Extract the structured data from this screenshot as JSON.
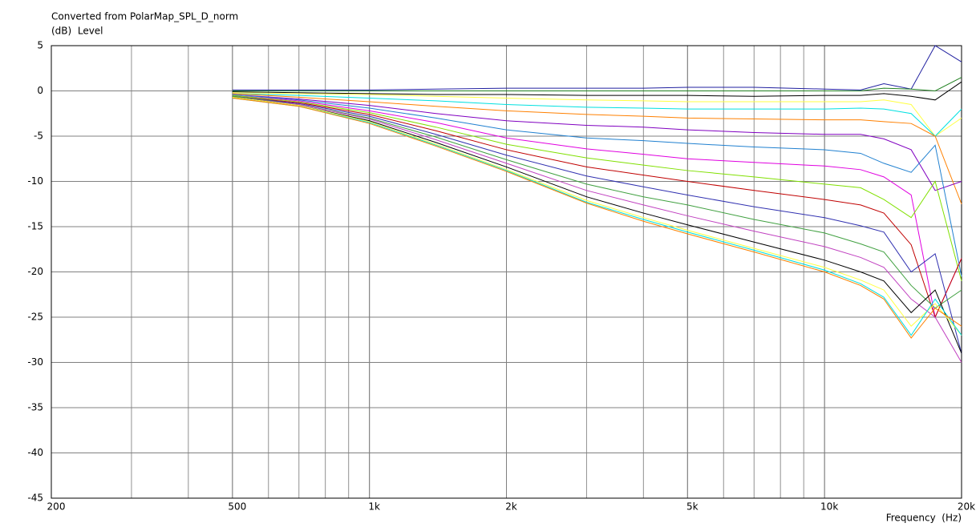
{
  "chart_data": {
    "type": "line",
    "title": "Converted from PolarMap_SPL_D_norm",
    "y_label": "(dB)  Level",
    "x_label": "Frequency  (Hz)",
    "xscale": "log",
    "grid": true,
    "minor_grid": true,
    "xlim": [
      200,
      20000
    ],
    "ylim": [
      -45,
      5
    ],
    "xticks": [
      200,
      500,
      {
        "value": 1000,
        "label": "1k"
      },
      {
        "value": 2000,
        "label": "2k"
      },
      {
        "value": 5000,
        "label": "5k"
      },
      {
        "value": 10000,
        "label": "10k"
      },
      {
        "value": 20000,
        "label": "20k"
      }
    ],
    "yticks": [
      5,
      0,
      -5,
      -10,
      -15,
      -20,
      -25,
      -30,
      -35,
      -40,
      -45
    ],
    "x": [
      500,
      700,
      1000,
      1400,
      2000,
      3000,
      4000,
      5000,
      7000,
      10000,
      12000,
      13500,
      15500,
      17500,
      20000
    ],
    "series": [
      {
        "color": "#2020a0",
        "values": [
          0.1,
          0.1,
          0.1,
          0.2,
          0.3,
          0.3,
          0.3,
          0.4,
          0.4,
          0.2,
          0.1,
          0.8,
          0.2,
          5,
          3.2
        ]
      },
      {
        "color": "#208020",
        "values": [
          0,
          0,
          0,
          0,
          0,
          0,
          0,
          0,
          0,
          0,
          0,
          0.3,
          0.2,
          0,
          1.5
        ]
      },
      {
        "color": "#000000",
        "values": [
          -0.1,
          -0.2,
          -0.3,
          -0.4,
          -0.4,
          -0.5,
          -0.5,
          -0.5,
          -0.6,
          -0.5,
          -0.5,
          -0.3,
          -0.6,
          -1,
          1
        ]
      },
      {
        "color": "#ffff40",
        "values": [
          -0.2,
          -0.3,
          -0.4,
          -0.6,
          -0.8,
          -1,
          -1.1,
          -1.2,
          -1.2,
          -1.2,
          -1.2,
          -1,
          -1.5,
          -5,
          -3
        ]
      },
      {
        "color": "#00e0e0",
        "values": [
          -0.3,
          -0.5,
          -0.8,
          -1.1,
          -1.5,
          -1.8,
          -1.9,
          -2,
          -2,
          -2,
          -1.9,
          -2,
          -2.5,
          -5,
          -2
        ]
      },
      {
        "color": "#ff8000",
        "values": [
          -0.3,
          -0.7,
          -1.2,
          -1.7,
          -2.2,
          -2.6,
          -2.8,
          -3,
          -3.1,
          -3.2,
          -3.2,
          -3.4,
          -3.6,
          -5,
          -12.5
        ]
      },
      {
        "color": "#8000c0",
        "values": [
          -0.4,
          -0.9,
          -1.6,
          -2.5,
          -3.3,
          -3.8,
          -4,
          -4.3,
          -4.6,
          -4.8,
          -4.8,
          -5.3,
          -6.5,
          -11,
          -10
        ]
      },
      {
        "color": "#2080d0",
        "values": [
          -0.4,
          -1,
          -1.9,
          -3,
          -4.3,
          -5.2,
          -5.5,
          -5.8,
          -6.2,
          -6.5,
          -6.9,
          -8,
          -9,
          -6,
          -20.5
        ]
      },
      {
        "color": "#e000e0",
        "values": [
          -0.5,
          -1.1,
          -2.2,
          -3.5,
          -5.2,
          -6.4,
          -7,
          -7.5,
          -7.9,
          -8.3,
          -8.7,
          -9.5,
          -11.5,
          -25,
          -18.5
        ]
      },
      {
        "color": "#80e000",
        "values": [
          -0.5,
          -1.2,
          -2.4,
          -4,
          -5.9,
          -7.4,
          -8.2,
          -8.8,
          -9.5,
          -10.3,
          -10.7,
          -12,
          -14,
          -10,
          -21
        ]
      },
      {
        "color": "#c00000",
        "values": [
          -0.6,
          -1.3,
          -2.6,
          -4.4,
          -6.5,
          -8.4,
          -9.3,
          -10,
          -11,
          -12,
          -12.6,
          -13.5,
          -17,
          -25,
          -18.5
        ]
      },
      {
        "color": "#3030b0",
        "values": [
          -0.6,
          -1.4,
          -2.8,
          -4.8,
          -7.1,
          -9.4,
          -10.6,
          -11.5,
          -12.8,
          -14,
          -14.9,
          -15.6,
          -20,
          -18,
          -29
        ]
      },
      {
        "color": "#40a040",
        "values": [
          -0.6,
          -1.5,
          -3,
          -5.1,
          -7.6,
          -10.3,
          -11.7,
          -12.6,
          -14.2,
          -15.7,
          -16.9,
          -17.8,
          -21.5,
          -24,
          -22
        ]
      },
      {
        "color": "#c040c0",
        "values": [
          -0.7,
          -1.5,
          -3.1,
          -5.4,
          -8,
          -11,
          -12.6,
          -13.8,
          -15.5,
          -17.2,
          -18.4,
          -19.5,
          -23,
          -25,
          -30
        ]
      },
      {
        "color": "#000000",
        "values": [
          -0.7,
          -1.6,
          -3.3,
          -5.7,
          -8.4,
          -11.7,
          -13.5,
          -14.8,
          -16.7,
          -18.7,
          -20,
          -21,
          -24.5,
          -22,
          -29
        ]
      },
      {
        "color": "#ffff40",
        "values": [
          -0.7,
          -1.6,
          -3.4,
          -5.9,
          -8.7,
          -12.1,
          -14,
          -15.4,
          -17.4,
          -19.5,
          -20.9,
          -22,
          -26,
          -23.5,
          -27
        ]
      },
      {
        "color": "#00e0e0",
        "values": [
          -0.8,
          -1.7,
          -3.5,
          -6,
          -8.8,
          -12.3,
          -14.2,
          -15.6,
          -17.6,
          -19.8,
          -21.3,
          -22.8,
          -27,
          -23,
          -27
        ]
      },
      {
        "color": "#ff8000",
        "values": [
          -0.8,
          -1.7,
          -3.6,
          -6.1,
          -8.9,
          -12.4,
          -14.4,
          -15.8,
          -17.8,
          -20,
          -21.5,
          -23,
          -27.3,
          -24,
          -26
        ]
      }
    ]
  }
}
